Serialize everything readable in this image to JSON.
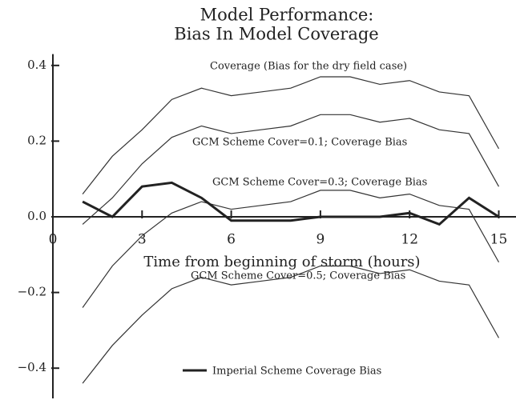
{
  "chart_data": {
    "type": "line",
    "title": [
      "Model Performance:",
      "Bias In Model Coverage"
    ],
    "xlabel": "Time from beginning of storm (hours)",
    "x": [
      1,
      2,
      3,
      4,
      5,
      6,
      7,
      8,
      9,
      10,
      11,
      12,
      13,
      14,
      15
    ],
    "series": [
      {
        "name": "Coverage (Bias for the dry field case)",
        "color": "#333333",
        "values": [
          0.06,
          0.16,
          0.23,
          0.31,
          0.34,
          0.32,
          0.33,
          0.34,
          0.37,
          0.37,
          0.35,
          0.36,
          0.33,
          0.32,
          0.18
        ]
      },
      {
        "name": "GCM Scheme Cover=0.1; Coverage Bias",
        "color": "#333333",
        "values": [
          -0.02,
          0.05,
          0.14,
          0.21,
          0.24,
          0.22,
          0.23,
          0.24,
          0.27,
          0.27,
          0.25,
          0.26,
          0.23,
          0.22,
          0.08
        ]
      },
      {
        "name": "GCM Scheme Cover=0.3; Coverage Bias",
        "color": "#333333",
        "values": [
          -0.24,
          -0.13,
          -0.05,
          0.01,
          0.04,
          0.02,
          0.03,
          0.04,
          0.07,
          0.07,
          0.05,
          0.06,
          0.03,
          0.02,
          -0.12
        ]
      },
      {
        "name": "GCM Scheme Cover=0.5; Coverage Bias",
        "color": "#333333",
        "values": [
          -0.44,
          -0.34,
          -0.26,
          -0.19,
          -0.16,
          -0.18,
          -0.17,
          -0.16,
          -0.13,
          -0.13,
          -0.15,
          -0.14,
          -0.17,
          -0.18,
          -0.32
        ]
      },
      {
        "name": "Imperial Scheme Coverage Bias",
        "color": "#222222",
        "legend": true,
        "values": [
          0.04,
          0.0,
          0.08,
          0.09,
          0.05,
          -0.01,
          -0.01,
          -0.01,
          0.0,
          0.0,
          0.0,
          0.01,
          -0.02,
          0.05,
          0.0
        ]
      }
    ],
    "xlim": [
      0,
      15.5
    ],
    "ylim": [
      -0.48,
      0.43
    ],
    "xticks": [
      0,
      3,
      6,
      9,
      12,
      15
    ],
    "yticks": [
      {
        "value": 0.4,
        "label": "0.4"
      },
      {
        "value": 0.2,
        "label": "0.2"
      },
      {
        "value": 0,
        "label": "0.0"
      },
      {
        "value": -0.2,
        "label": "−0.2"
      },
      {
        "value": -0.4,
        "label": "−0.4"
      }
    ]
  }
}
